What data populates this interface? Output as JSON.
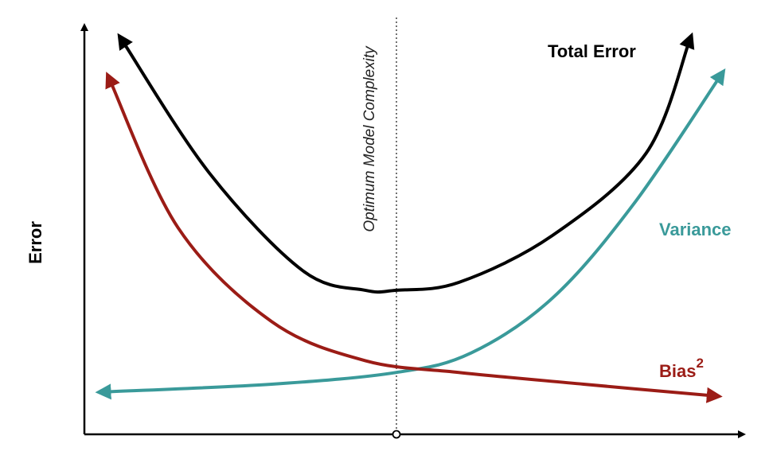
{
  "chart_data": {
    "type": "line",
    "title": "",
    "xlabel": "",
    "ylabel": "Error",
    "annotations": [
      {
        "text": "Optimum Model Complexity",
        "x": 0.5
      }
    ],
    "xlim": [
      0,
      1
    ],
    "ylim": [
      0,
      1
    ],
    "grid": false,
    "legend": "none",
    "series": [
      {
        "name": "Total Error",
        "color": "#000000",
        "x": [
          0.06,
          0.2,
          0.35,
          0.45,
          0.5,
          0.6,
          0.75,
          0.9,
          0.97
        ],
        "y": [
          1.0,
          0.66,
          0.41,
          0.36,
          0.36,
          0.38,
          0.5,
          0.71,
          1.0
        ]
      },
      {
        "name": "Variance",
        "color": "#3a9a9a",
        "x": [
          0.03,
          0.3,
          0.5,
          0.62,
          0.75,
          0.88,
          1.02
        ],
        "y": [
          0.1,
          0.12,
          0.15,
          0.2,
          0.34,
          0.58,
          0.91
        ]
      },
      {
        "name": "Bias",
        "label_superscript": "2",
        "color": "#9b1c16",
        "x": [
          0.04,
          0.15,
          0.3,
          0.45,
          0.6,
          0.8,
          1.01
        ],
        "y": [
          0.9,
          0.52,
          0.28,
          0.18,
          0.15,
          0.12,
          0.09
        ]
      }
    ]
  }
}
